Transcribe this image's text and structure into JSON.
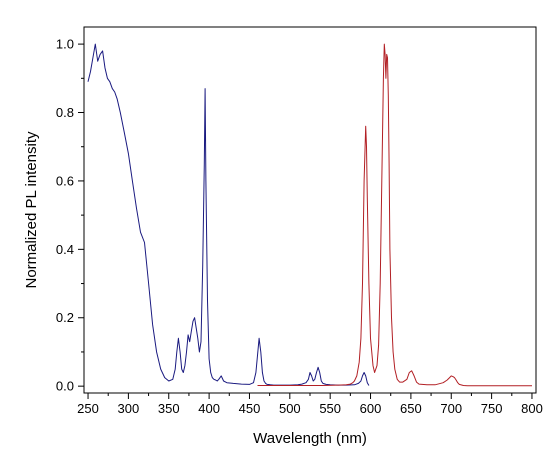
{
  "chart_data": {
    "type": "line",
    "title": "",
    "xlabel": "Wavelength (nm)",
    "ylabel": "Normalized PL intensity",
    "xlim": [
      245,
      805
    ],
    "ylim": [
      -0.02,
      1.05
    ],
    "x_ticks": [
      250,
      300,
      350,
      400,
      450,
      500,
      550,
      600,
      650,
      700,
      750,
      800
    ],
    "x_tick_labels": [
      "250",
      "300",
      "350",
      "400",
      "450",
      "500",
      "550",
      "600",
      "650",
      "700",
      "750",
      "800"
    ],
    "y_ticks": [
      0.0,
      0.2,
      0.4,
      0.6,
      0.8,
      1.0
    ],
    "y_tick_labels": [
      "0.0",
      "0.2",
      "0.4",
      "0.6",
      "0.8",
      "1.0"
    ],
    "grid": false,
    "legend": "none",
    "series": [
      {
        "color": "#1a1a80",
        "x": [
          250,
          253,
          256,
          259,
          262,
          265,
          268,
          271,
          274,
          277,
          280,
          283,
          286,
          290,
          295,
          300,
          305,
          310,
          315,
          320,
          325,
          330,
          335,
          340,
          345,
          350,
          355,
          358,
          360,
          362,
          364,
          366,
          368,
          370,
          372,
          374,
          376,
          378,
          380,
          382,
          384,
          386,
          388,
          390,
          392,
          394,
          395,
          396,
          398,
          400,
          402,
          404,
          406,
          408,
          410,
          412,
          415,
          418,
          422,
          430,
          440,
          450,
          455,
          458,
          460,
          462,
          464,
          466,
          468,
          470,
          472,
          476,
          480,
          490,
          500,
          510,
          515,
          520,
          523,
          525,
          527,
          529,
          531,
          533,
          535,
          537,
          539,
          541,
          545,
          550,
          560,
          570,
          580,
          585,
          588,
          590,
          592,
          594,
          596,
          598
        ],
        "y": [
          0.89,
          0.92,
          0.96,
          1.0,
          0.95,
          0.97,
          0.98,
          0.93,
          0.9,
          0.89,
          0.87,
          0.86,
          0.84,
          0.8,
          0.74,
          0.68,
          0.6,
          0.52,
          0.45,
          0.42,
          0.3,
          0.18,
          0.1,
          0.05,
          0.025,
          0.015,
          0.02,
          0.05,
          0.1,
          0.14,
          0.1,
          0.05,
          0.04,
          0.06,
          0.1,
          0.15,
          0.13,
          0.16,
          0.19,
          0.2,
          0.17,
          0.14,
          0.1,
          0.13,
          0.35,
          0.65,
          0.87,
          0.6,
          0.25,
          0.08,
          0.04,
          0.025,
          0.02,
          0.018,
          0.015,
          0.02,
          0.03,
          0.015,
          0.01,
          0.008,
          0.006,
          0.005,
          0.01,
          0.04,
          0.09,
          0.14,
          0.1,
          0.04,
          0.015,
          0.008,
          0.005,
          0.004,
          0.003,
          0.003,
          0.003,
          0.004,
          0.006,
          0.01,
          0.02,
          0.04,
          0.03,
          0.015,
          0.02,
          0.04,
          0.055,
          0.04,
          0.015,
          0.008,
          0.005,
          0.004,
          0.003,
          0.003,
          0.004,
          0.008,
          0.015,
          0.03,
          0.04,
          0.03,
          0.01,
          0.002
        ]
      },
      {
        "color": "#b21f24",
        "x": [
          460,
          480,
          500,
          520,
          540,
          560,
          570,
          575,
          578,
          580,
          583,
          586,
          588,
          590,
          592,
          594,
          595,
          596,
          598,
          600,
          603,
          605,
          608,
          610,
          612,
          614,
          616,
          617,
          618,
          619,
          620,
          621,
          622,
          623,
          624,
          626,
          628,
          630,
          633,
          636,
          640,
          645,
          648,
          651,
          654,
          657,
          660,
          670,
          680,
          690,
          695,
          698,
          700,
          702,
          704,
          706,
          708,
          710,
          715,
          720,
          740,
          760,
          780,
          800
        ],
        "y": [
          0.002,
          0.002,
          0.002,
          0.002,
          0.002,
          0.003,
          0.004,
          0.006,
          0.01,
          0.015,
          0.03,
          0.07,
          0.14,
          0.3,
          0.6,
          0.76,
          0.7,
          0.55,
          0.3,
          0.14,
          0.06,
          0.04,
          0.06,
          0.12,
          0.3,
          0.6,
          0.9,
          1.0,
          0.97,
          0.9,
          0.97,
          0.96,
          0.85,
          0.65,
          0.4,
          0.2,
          0.1,
          0.05,
          0.02,
          0.012,
          0.012,
          0.02,
          0.04,
          0.045,
          0.03,
          0.012,
          0.006,
          0.004,
          0.004,
          0.01,
          0.018,
          0.025,
          0.03,
          0.028,
          0.025,
          0.018,
          0.01,
          0.005,
          0.002,
          0.001,
          0.001,
          0.001,
          0.001,
          0.001
        ]
      }
    ]
  }
}
